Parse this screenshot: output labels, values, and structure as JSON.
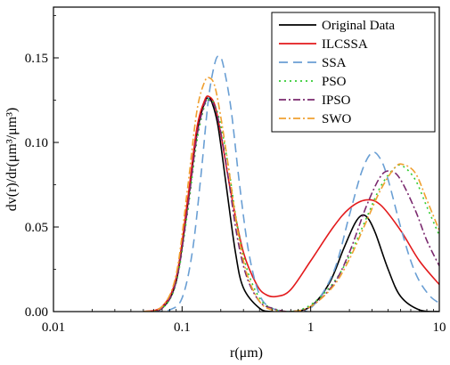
{
  "chart_data": {
    "type": "line",
    "xscale": "log",
    "xlim": [
      0.01,
      10
    ],
    "ylim": [
      0,
      0.18
    ],
    "xticks": [
      0.01,
      0.1,
      1,
      10
    ],
    "xtick_labels": [
      "0.01",
      "0.1",
      "1",
      "10"
    ],
    "yticks": [
      0,
      0.05,
      0.1,
      0.15
    ],
    "ytick_labels": [
      "0.00",
      "0.05",
      "0.10",
      "0.15"
    ],
    "xlabel": "r(μm)",
    "ylabel": "dv(r)/dr(μm³/μm³)",
    "legend_position": "top-right",
    "series": [
      {
        "name": "Original Data",
        "color": "#000000",
        "dash": "solid",
        "x": [
          0.05,
          0.07,
          0.09,
          0.11,
          0.13,
          0.15,
          0.16,
          0.17,
          0.19,
          0.22,
          0.26,
          0.3,
          0.4,
          0.5,
          0.7,
          1.0,
          1.4,
          1.8,
          2.2,
          2.5,
          2.8,
          3.2,
          4.0,
          5.0,
          7.0,
          10.0
        ],
        "y": [
          0.0,
          0.002,
          0.018,
          0.062,
          0.105,
          0.124,
          0.126,
          0.124,
          0.11,
          0.075,
          0.035,
          0.014,
          0.002,
          0.0,
          0.0,
          0.003,
          0.017,
          0.037,
          0.052,
          0.057,
          0.055,
          0.046,
          0.025,
          0.009,
          0.001,
          0.0
        ]
      },
      {
        "name": "ILCSSA",
        "color": "#e31a1c",
        "dash": "solid",
        "x": [
          0.05,
          0.07,
          0.09,
          0.11,
          0.13,
          0.15,
          0.163,
          0.18,
          0.2,
          0.24,
          0.3,
          0.38,
          0.45,
          0.55,
          0.7,
          1.0,
          1.5,
          2.0,
          2.7,
          3.5,
          5.0,
          7.0,
          10.0
        ],
        "y": [
          0.0,
          0.003,
          0.02,
          0.065,
          0.108,
          0.125,
          0.127,
          0.122,
          0.105,
          0.07,
          0.035,
          0.016,
          0.01,
          0.009,
          0.013,
          0.03,
          0.05,
          0.061,
          0.066,
          0.063,
          0.048,
          0.03,
          0.016
        ]
      },
      {
        "name": "SSA",
        "color": "#6a9fd4",
        "dash": "10,6",
        "x": [
          0.06,
          0.08,
          0.1,
          0.12,
          0.14,
          0.16,
          0.18,
          0.195,
          0.21,
          0.24,
          0.28,
          0.33,
          0.4,
          0.5,
          0.7,
          1.0,
          1.5,
          2.0,
          2.5,
          3.0,
          3.5,
          4.0,
          5.0,
          6.0,
          7.0,
          8.5,
          10.0
        ],
        "y": [
          0.0,
          0.001,
          0.008,
          0.035,
          0.08,
          0.125,
          0.147,
          0.151,
          0.145,
          0.12,
          0.075,
          0.035,
          0.01,
          0.002,
          0.0,
          0.002,
          0.023,
          0.057,
          0.083,
          0.094,
          0.09,
          0.078,
          0.05,
          0.03,
          0.018,
          0.009,
          0.005
        ]
      },
      {
        "name": "PSO",
        "color": "#33cc33",
        "dash": "2,4",
        "x": [
          0.05,
          0.07,
          0.09,
          0.11,
          0.13,
          0.15,
          0.165,
          0.18,
          0.2,
          0.23,
          0.27,
          0.32,
          0.4,
          0.5,
          0.7,
          1.0,
          1.5,
          2.0,
          2.7,
          3.5,
          4.5,
          5.2,
          6.5,
          8.0,
          10.0
        ],
        "y": [
          0.0,
          0.002,
          0.017,
          0.058,
          0.1,
          0.122,
          0.125,
          0.122,
          0.11,
          0.085,
          0.05,
          0.025,
          0.008,
          0.002,
          0.0,
          0.004,
          0.017,
          0.033,
          0.055,
          0.074,
          0.085,
          0.086,
          0.078,
          0.062,
          0.045
        ]
      },
      {
        "name": "IPSO",
        "color": "#7b2a6f",
        "dash": "8,3,2,3",
        "x": [
          0.05,
          0.07,
          0.09,
          0.11,
          0.13,
          0.15,
          0.163,
          0.18,
          0.2,
          0.23,
          0.27,
          0.32,
          0.4,
          0.5,
          0.7,
          1.0,
          1.5,
          2.0,
          2.7,
          3.5,
          4.2,
          5.0,
          6.5,
          8.0,
          10.0
        ],
        "y": [
          0.0,
          0.002,
          0.018,
          0.06,
          0.103,
          0.123,
          0.125,
          0.121,
          0.106,
          0.078,
          0.043,
          0.02,
          0.006,
          0.002,
          0.0,
          0.003,
          0.016,
          0.035,
          0.062,
          0.08,
          0.083,
          0.078,
          0.06,
          0.042,
          0.027
        ]
      },
      {
        "name": "SWO",
        "color": "#f0a030",
        "dash": "8,3,2,3",
        "x": [
          0.05,
          0.07,
          0.09,
          0.11,
          0.13,
          0.15,
          0.165,
          0.18,
          0.2,
          0.23,
          0.27,
          0.32,
          0.4,
          0.5,
          0.7,
          1.0,
          1.5,
          2.0,
          2.7,
          3.5,
          4.5,
          5.2,
          6.5,
          8.0,
          10.0
        ],
        "y": [
          0.0,
          0.003,
          0.022,
          0.072,
          0.118,
          0.136,
          0.138,
          0.133,
          0.115,
          0.085,
          0.048,
          0.022,
          0.006,
          0.001,
          0.0,
          0.003,
          0.015,
          0.031,
          0.053,
          0.072,
          0.085,
          0.087,
          0.082,
          0.066,
          0.048
        ]
      }
    ]
  }
}
